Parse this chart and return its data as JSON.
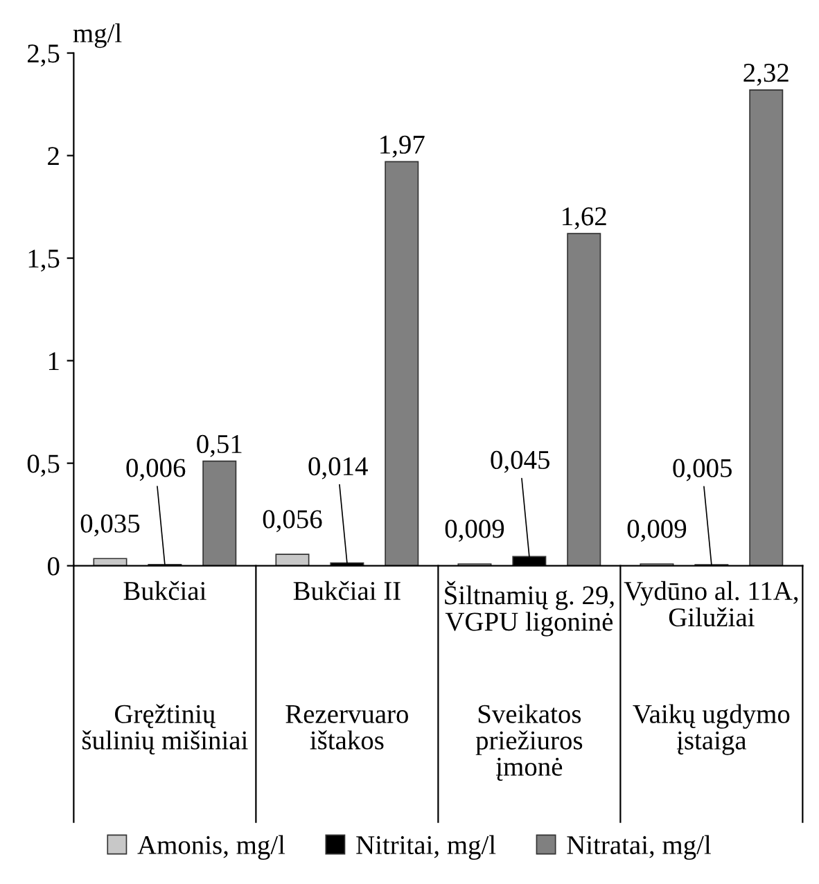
{
  "chart_data": {
    "type": "bar",
    "ylabel": "mg/l",
    "categories": [
      "Bukčiai",
      "Bukčiai II",
      "Šiltnamių g. 29, VGPU ligoninė",
      "Vydūno al. 11A, Gilužiai"
    ],
    "series": [
      {
        "name": "Amonis, mg/l",
        "color": "#c8c8c8",
        "values": [
          0.035,
          0.056,
          0.009,
          0.009
        ],
        "value_labels": [
          "0,035",
          "0,056",
          "0,009",
          "0,009"
        ]
      },
      {
        "name": "Nitritai, mg/l",
        "color": "#000000",
        "values": [
          0.006,
          0.014,
          0.045,
          0.005
        ],
        "value_labels": [
          "0,006",
          "0,014",
          "0,045",
          "0,005"
        ]
      },
      {
        "name": "Nitratai, mg/l",
        "color": "#808080",
        "values": [
          0.51,
          1.97,
          1.62,
          2.32
        ],
        "value_labels": [
          "0,51",
          "1,97",
          "1,62",
          "2,32"
        ]
      }
    ],
    "ylim": [
      0,
      2.5
    ],
    "yticks": [
      0,
      {
        "value": 0.5,
        "label": "0,5"
      },
      1,
      {
        "value": 1.5,
        "label": "1,5"
      },
      2,
      {
        "value": 2.5,
        "label": "2,5"
      }
    ],
    "annotations": [
      "Gręžtinių šulinių mišiniai",
      "Rezervuaro ištakos",
      "Sveikatos priežiuros įmonė",
      "Vaikų ugdymo įstaiga"
    ],
    "grid": false,
    "legend": "bottom"
  }
}
